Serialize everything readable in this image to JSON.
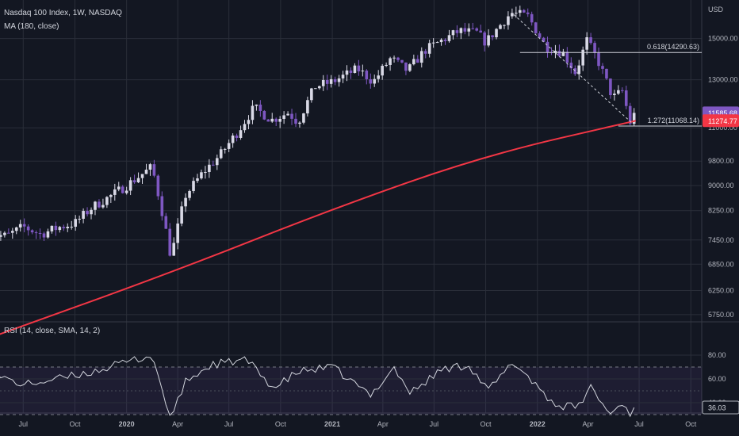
{
  "chart_data": {
    "type": "candlestick",
    "title": "Nasdaq 100 Index, 1W, NASDAQ",
    "currency": "USD",
    "ma_label": "MA (180, close)",
    "rsi_label": "RSI (14, close, SMA, 14, 2)",
    "price_ticks": [
      15000,
      13000,
      11000,
      9800,
      9000,
      8250,
      7450,
      6850,
      6250,
      5750
    ],
    "price_tick_labels": [
      "15000.00",
      "13000.00",
      "11000.00",
      "9800.00",
      "9000.00",
      "8250.00",
      "7450.00",
      "6850.00",
      "6250.00",
      "5750.00"
    ],
    "rsi_ticks": [
      80,
      60,
      40
    ],
    "rsi_tick_labels": [
      "80.00",
      "60.00",
      "40.00"
    ],
    "rsi_band": [
      70,
      30
    ],
    "x_labels": [
      "Jul",
      "Oct",
      "2020",
      "Apr",
      "Jul",
      "Oct",
      "2021",
      "Apr",
      "Jul",
      "Oct",
      "2022",
      "Apr",
      "Jul",
      "Oct"
    ],
    "x_label_dates": [
      "2019-07",
      "2019-10",
      "2020-01",
      "2020-04",
      "2020-07",
      "2020-10",
      "2021-01",
      "2021-04",
      "2021-07",
      "2021-10",
      "2022-01",
      "2022-04",
      "2022-07",
      "2022-10"
    ],
    "grid": true,
    "close_points": [
      [
        "2019-05-01",
        7600
      ],
      [
        "2019-06-01",
        7550
      ],
      [
        "2019-07-01",
        7800
      ],
      [
        "2019-08-01",
        7600
      ],
      [
        "2019-09-01",
        7780
      ],
      [
        "2019-10-01",
        7900
      ],
      [
        "2019-11-01",
        8350
      ],
      [
        "2019-12-01",
        8650
      ],
      [
        "2020-01-01",
        9000
      ],
      [
        "2020-02-15",
        9600
      ],
      [
        "2020-03-20",
        7000
      ],
      [
        "2020-04-15",
        8700
      ],
      [
        "2020-05-15",
        9400
      ],
      [
        "2020-06-15",
        10000
      ],
      [
        "2020-07-15",
        10800
      ],
      [
        "2020-08-15",
        11800
      ],
      [
        "2020-09-15",
        11300
      ],
      [
        "2020-10-15",
        11600
      ],
      [
        "2020-11-01",
        11200
      ],
      [
        "2020-12-01",
        12700
      ],
      [
        "2021-01-01",
        12900
      ],
      [
        "2021-02-15",
        13500
      ],
      [
        "2021-03-15",
        12900
      ],
      [
        "2021-04-15",
        14000
      ],
      [
        "2021-05-15",
        13400
      ],
      [
        "2021-06-15",
        14400
      ],
      [
        "2021-07-15",
        14900
      ],
      [
        "2021-08-15",
        15400
      ],
      [
        "2021-09-15",
        15300
      ],
      [
        "2021-10-01",
        14800
      ],
      [
        "2021-11-15",
        16400
      ],
      [
        "2021-12-15",
        16200
      ],
      [
        "2022-01-15",
        14600
      ],
      [
        "2022-02-15",
        14300
      ],
      [
        "2022-03-10",
        13300
      ],
      [
        "2022-03-30",
        14900
      ],
      [
        "2022-04-20",
        13800
      ],
      [
        "2022-05-15",
        12200
      ],
      [
        "2022-06-01",
        12500
      ],
      [
        "2022-06-15",
        11200
      ],
      [
        "2022-06-25",
        11585.68
      ]
    ],
    "ma_points": [
      [
        "2019-05-01",
        5300
      ],
      [
        "2020-03-20",
        6650
      ],
      [
        "2021-01-01",
        8300
      ],
      [
        "2021-10-01",
        10000
      ],
      [
        "2022-06-25",
        11274.77
      ]
    ],
    "rsi_points": [
      [
        "2019-05-01",
        65
      ],
      [
        "2019-07-01",
        55
      ],
      [
        "2019-09-01",
        60
      ],
      [
        "2019-11-01",
        66
      ],
      [
        "2020-01-15",
        76
      ],
      [
        "2020-02-15",
        80
      ],
      [
        "2020-03-20",
        26
      ],
      [
        "2020-04-15",
        58
      ],
      [
        "2020-06-01",
        72
      ],
      [
        "2020-08-01",
        76
      ],
      [
        "2020-09-20",
        52
      ],
      [
        "2020-11-01",
        66
      ],
      [
        "2021-01-01",
        70
      ],
      [
        "2021-03-10",
        46
      ],
      [
        "2021-04-20",
        70
      ],
      [
        "2021-05-20",
        48
      ],
      [
        "2021-07-15",
        68
      ],
      [
        "2021-09-01",
        72
      ],
      [
        "2021-10-05",
        50
      ],
      [
        "2021-11-20",
        74
      ],
      [
        "2022-01-01",
        54
      ],
      [
        "2022-02-01",
        38
      ],
      [
        "2022-03-15",
        36
      ],
      [
        "2022-04-05",
        54
      ],
      [
        "2022-05-10",
        30
      ],
      [
        "2022-06-01",
        40
      ],
      [
        "2022-06-17",
        30
      ],
      [
        "2022-06-25",
        36.03
      ]
    ],
    "current_price": 11585.68,
    "current_price_label": "11585.68",
    "current_ma": 11274.77,
    "current_ma_label": "11274.77",
    "current_rsi": 36.03,
    "current_rsi_label": "36.03",
    "fib_levels": [
      {
        "label": "0.618(14290.63)",
        "value": 14290.63,
        "from": "2021-12-01",
        "to": "2022-10-31"
      },
      {
        "label": "1.272(11068.14)",
        "value": 11068.14,
        "from": "2022-05-25",
        "to": "2022-10-31"
      }
    ],
    "colors": {
      "background": "#131722",
      "grid": "#2a2e39",
      "up_candle": "#d9d9e6",
      "down_candle": "#7e57c2",
      "ma_line": "#f23645",
      "rsi_line": "#d1d4dc",
      "rsi_band": "#7e57c2",
      "price_label_bg": "#7e57c2",
      "ma_label_bg": "#f23645",
      "axis_text": "#b2b5be",
      "fib_line": "#d1d4dc"
    }
  }
}
